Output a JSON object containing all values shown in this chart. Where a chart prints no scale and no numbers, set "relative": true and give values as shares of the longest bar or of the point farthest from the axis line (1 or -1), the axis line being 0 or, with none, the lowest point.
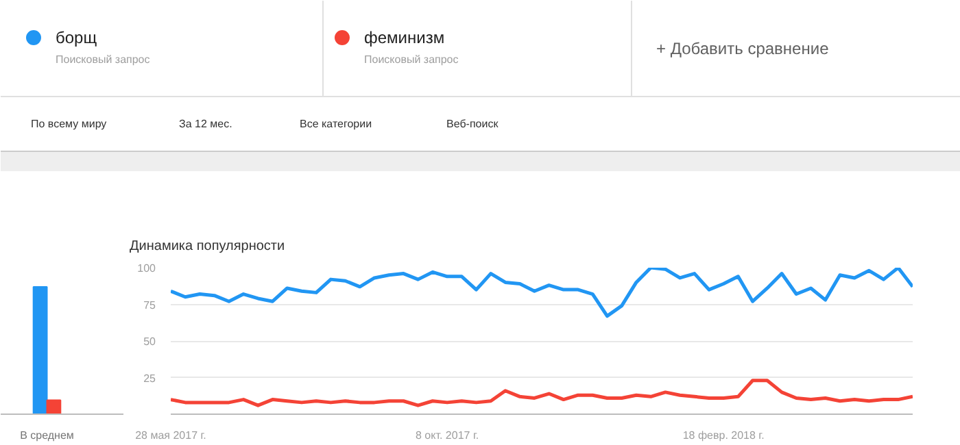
{
  "chart_data": [
    {
      "type": "other",
      "annotations": [
        "Поисковый запрос",
        "Поисковый запрос",
        "+ Добавить сравнение",
        "По всему миру",
        "За 12 мес.",
        "Все категории",
        "Веб-поиск"
      ]
    },
    {
      "type": "bar",
      "relative": true,
      "categories": [
        "В среднем"
      ],
      "series": [
        {
          "color": "#2196f3",
          "values": [
            1
          ]
        },
        {
          "color": "#f44336",
          "values": [
            0.11
          ]
        }
      ]
    },
    {
      "type": "line",
      "title": "Динамика популярности",
      "legend": "top",
      "grid": "y",
      "ylim": [
        0,
        100
      ],
      "yticks": [
        25,
        50,
        75,
        100
      ],
      "xlim": [
        "2017-05-28",
        "2018-05-20"
      ],
      "xticks": [
        {
          "value": "2017-05-28",
          "label": "28 мая 2017 г."
        },
        {
          "value": "2017-10-08",
          "label": "8 окт. 2017 г."
        },
        {
          "value": "2018-02-18",
          "label": "18 февр. 2018 г."
        }
      ],
      "x": [
        "2017-05-28",
        "2017-06-04",
        "2017-06-11",
        "2017-06-18",
        "2017-06-25",
        "2017-07-02",
        "2017-07-09",
        "2017-07-16",
        "2017-07-23",
        "2017-07-30",
        "2017-08-06",
        "2017-08-13",
        "2017-08-20",
        "2017-08-27",
        "2017-09-03",
        "2017-09-10",
        "2017-09-17",
        "2017-09-24",
        "2017-10-01",
        "2017-10-08",
        "2017-10-15",
        "2017-10-22",
        "2017-10-29",
        "2017-11-05",
        "2017-11-12",
        "2017-11-19",
        "2017-11-26",
        "2017-12-03",
        "2017-12-10",
        "2017-12-17",
        "2017-12-24",
        "2017-12-31",
        "2018-01-07",
        "2018-01-14",
        "2018-01-21",
        "2018-01-28",
        "2018-02-04",
        "2018-02-11",
        "2018-02-18",
        "2018-02-25",
        "2018-03-04",
        "2018-03-11",
        "2018-03-18",
        "2018-03-25",
        "2018-04-01",
        "2018-04-08",
        "2018-04-15",
        "2018-04-22",
        "2018-04-29",
        "2018-05-06",
        "2018-05-13",
        "2018-05-20"
      ],
      "series": [
        {
          "name": "борщ",
          "color": "#2196f3",
          "values": [
            84,
            80,
            82,
            81,
            77,
            82,
            79,
            77,
            86,
            84,
            83,
            92,
            91,
            87,
            93,
            95,
            96,
            92,
            97,
            94,
            94,
            85,
            96,
            90,
            89,
            84,
            88,
            85,
            85,
            82,
            67,
            74,
            90,
            100,
            99,
            93,
            96,
            85,
            89,
            94,
            77,
            86,
            96,
            82,
            86,
            78,
            95,
            93,
            98,
            92,
            100,
            87
          ]
        },
        {
          "name": "феминизм",
          "color": "#f44336",
          "values": [
            10,
            8,
            8,
            8,
            8,
            10,
            6,
            10,
            9,
            8,
            9,
            8,
            9,
            8,
            8,
            9,
            9,
            6,
            9,
            8,
            9,
            8,
            9,
            16,
            12,
            11,
            14,
            10,
            13,
            13,
            11,
            11,
            13,
            12,
            15,
            13,
            12,
            11,
            11,
            12,
            23,
            23,
            15,
            11,
            10,
            11,
            9,
            10,
            9,
            10,
            10,
            12
          ]
        }
      ]
    }
  ]
}
